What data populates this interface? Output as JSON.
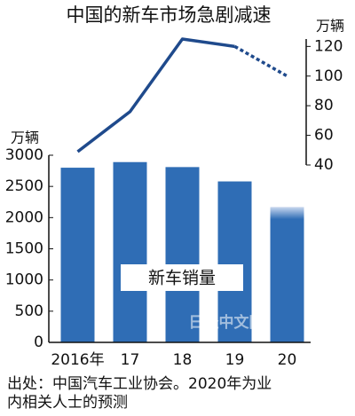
{
  "chart_data": {
    "type": "bar_line",
    "title": "中国的新车市场急剧减速",
    "y_label": "万辆",
    "y2_label": "万辆",
    "categories": [
      "2016年",
      "17",
      "18",
      "19",
      "20"
    ],
    "series": [
      {
        "name": "新车销量",
        "color": "#2f6db5",
        "values": [
          2800,
          2890,
          2810,
          2580,
          2170
        ]
      },
      {
        "color": "#1f4a8c",
        "axis": "y2",
        "values": [
          49,
          76,
          125,
          120,
          100
        ]
      }
    ],
    "forecast_index": 4,
    "ylim": [
      0,
      3000
    ],
    "yticks": [
      0,
      500,
      1000,
      1500,
      2000,
      2500,
      3000
    ],
    "y2lim": [
      40,
      125
    ],
    "y2ticks": [
      40,
      60,
      80,
      100,
      120
    ],
    "watermark": "日经中文网",
    "source": [
      "出处：中国汽车工业协会。2020年为业",
      "内相关人士的预测"
    ]
  }
}
